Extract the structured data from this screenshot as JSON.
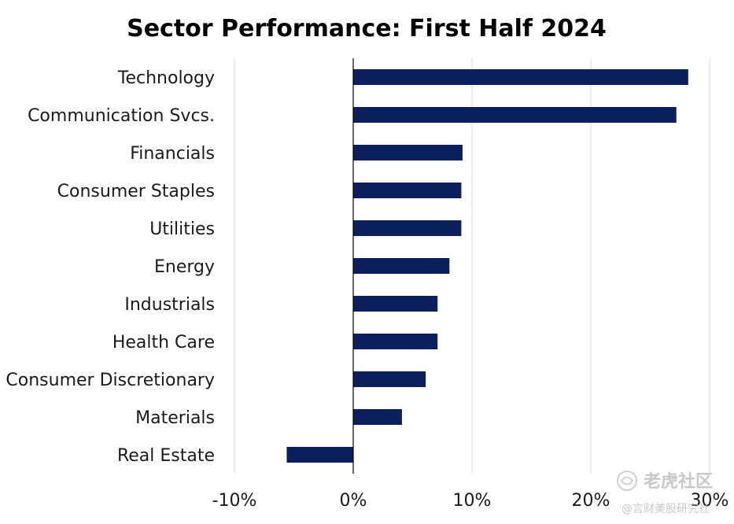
{
  "chart_data": {
    "type": "bar",
    "orientation": "horizontal",
    "title": "Sector Performance: First Half 2024",
    "xlabel": "",
    "ylabel": "",
    "categories": [
      "Technology",
      "Communication Svcs.",
      "Financials",
      "Consumer Staples",
      "Utilities",
      "Energy",
      "Industrials",
      "Health Care",
      "Consumer Discretionary",
      "Materials",
      "Real Estate"
    ],
    "values": [
      28.2,
      27.2,
      9.2,
      9.1,
      9.1,
      8.1,
      7.1,
      7.1,
      6.1,
      4.1,
      -5.6
    ],
    "xlim": [
      -10,
      30
    ],
    "xticks": [
      "-10%",
      "0%",
      "10%",
      "20%",
      "30%"
    ],
    "xtick_values": [
      -10,
      0,
      10,
      20,
      30
    ],
    "grid": true,
    "bar_color": "#0b1f5c",
    "grid_color": "#d9d9d9",
    "axis_color": "#000000"
  },
  "watermark": {
    "brand": "老虎社区",
    "handle": "@言财美股研究社"
  }
}
